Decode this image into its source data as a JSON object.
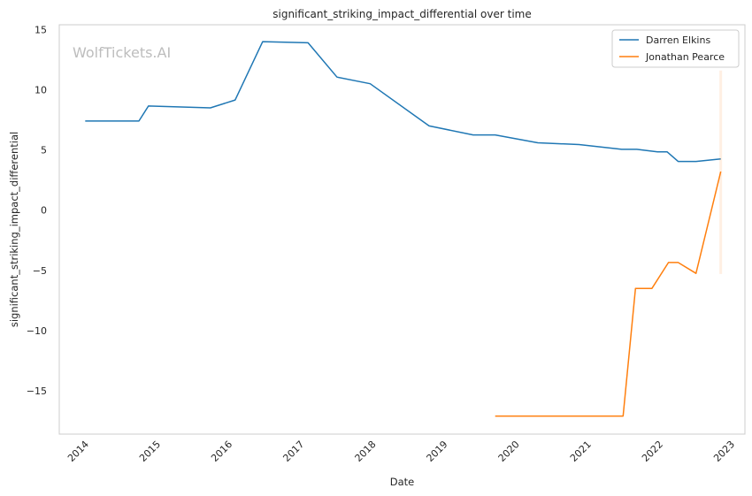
{
  "chart_data": {
    "type": "line",
    "title": "significant_striking_impact_differential over time",
    "xlabel": "Date",
    "ylabel": "significant_striking_impact_differential",
    "watermark": "WolfTickets.AI",
    "x_ticks": [
      "2014",
      "2015",
      "2016",
      "2017",
      "2018",
      "2019",
      "2020",
      "2021",
      "2022",
      "2023"
    ],
    "y_ticks": [
      15,
      10,
      5,
      0,
      -5,
      -10,
      -15
    ],
    "xlim": [
      "2013-09-15",
      "2023-04-05"
    ],
    "ylim": [
      -18.6,
      15.4
    ],
    "grid": true,
    "legend_position": "top-right",
    "series": [
      {
        "name": "Darren Elkins",
        "color": "#1f77b4",
        "points": [
          [
            "2014-01-25",
            7.4
          ],
          [
            "2014-10-25",
            7.4
          ],
          [
            "2014-12-13",
            8.65
          ],
          [
            "2015-10-24",
            8.5
          ],
          [
            "2016-02-27",
            9.15
          ],
          [
            "2016-07-16",
            14.0
          ],
          [
            "2017-03-04",
            13.9
          ],
          [
            "2017-07-29",
            11.05
          ],
          [
            "2018-01-14",
            10.5
          ],
          [
            "2018-11-10",
            7.0
          ],
          [
            "2019-06-22",
            6.25
          ],
          [
            "2019-10-12",
            6.25
          ],
          [
            "2020-05-16",
            5.6
          ],
          [
            "2020-12-12",
            5.45
          ],
          [
            "2021-07-17",
            5.05
          ],
          [
            "2021-10-02",
            5.05
          ],
          [
            "2022-01-15",
            4.85
          ],
          [
            "2022-03-05",
            4.85
          ],
          [
            "2022-04-30",
            4.05
          ],
          [
            "2022-07-30",
            4.05
          ],
          [
            "2022-12-03",
            4.25
          ]
        ]
      },
      {
        "name": "Jonathan Pearce",
        "color": "#ff7f0e",
        "points": [
          [
            "2019-10-12",
            -17.1
          ],
          [
            "2020-04-15",
            -17.1
          ],
          [
            "2021-04-15",
            -17.1
          ],
          [
            "2021-07-24",
            -17.1
          ],
          [
            "2021-09-25",
            -6.5
          ],
          [
            "2021-12-18",
            -6.5
          ],
          [
            "2022-03-12",
            -4.35
          ],
          [
            "2022-04-30",
            -4.35
          ],
          [
            "2022-07-30",
            -5.25
          ],
          [
            "2022-12-03",
            3.2
          ]
        ],
        "band": {
          "x": "2022-12-03",
          "low": -5.3,
          "high": 11.6
        }
      }
    ]
  }
}
